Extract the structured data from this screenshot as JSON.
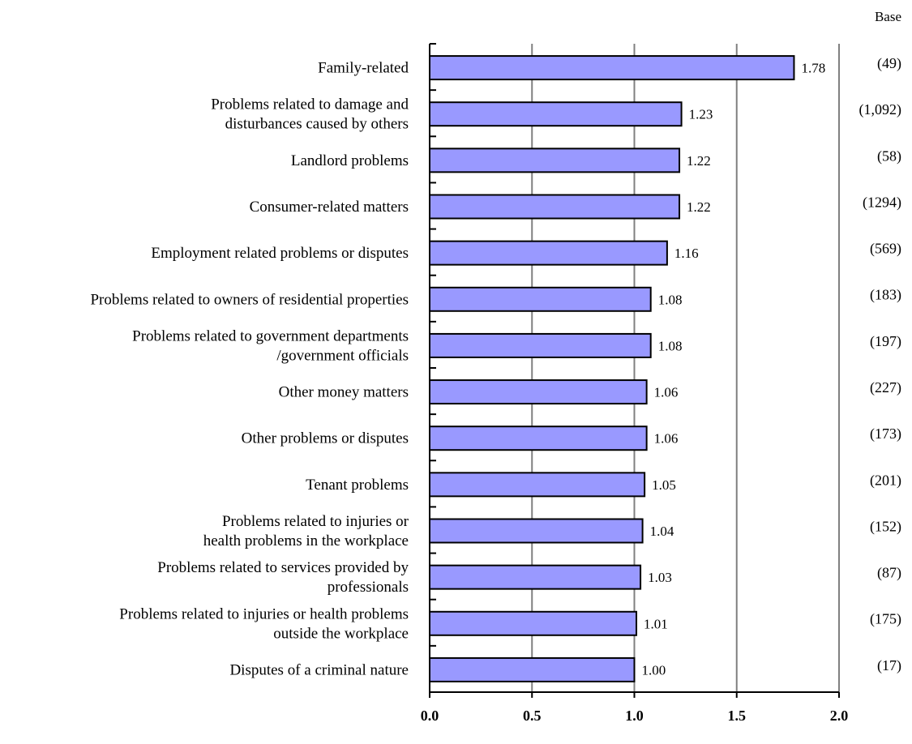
{
  "chart_data": {
    "type": "bar",
    "orientation": "horizontal",
    "base_title": "Base",
    "categories": [
      [
        "Family-related"
      ],
      [
        "Problems related to damage and",
        "disturbances caused by others"
      ],
      [
        "Landlord problems"
      ],
      [
        "Consumer-related matters"
      ],
      [
        "Employment related problems or disputes"
      ],
      [
        "Problems related to owners of residential properties"
      ],
      [
        "Problems related to government departments",
        "/government officials"
      ],
      [
        "Other money matters"
      ],
      [
        "Other problems or disputes"
      ],
      [
        "Tenant problems"
      ],
      [
        "Problems related to injuries or",
        "health problems in the workplace"
      ],
      [
        "Problems related to services provided by",
        "professionals"
      ],
      [
        "Problems related to injuries or health problems",
        "outside the workplace"
      ],
      [
        "Disputes of a criminal nature"
      ]
    ],
    "values": [
      1.78,
      1.23,
      1.22,
      1.22,
      1.16,
      1.08,
      1.08,
      1.06,
      1.06,
      1.05,
      1.04,
      1.03,
      1.01,
      1.0
    ],
    "value_labels": [
      "1.78",
      "1.23",
      "1.22",
      "1.22",
      "1.16",
      "1.08",
      "1.08",
      "1.06",
      "1.06",
      "1.05",
      "1.04",
      "1.03",
      "1.01",
      "1.00"
    ],
    "bases": [
      "(49)",
      "(1,092)",
      "(58)",
      "(1294)",
      "(569)",
      "(183)",
      "(197)",
      "(227)",
      "(173)",
      "(201)",
      "(152)",
      "(87)",
      "(175)",
      "(17)"
    ],
    "xlim": [
      0,
      2
    ],
    "xticks": [
      "0.0",
      "0.5",
      "1.0",
      "1.5",
      "2.0"
    ],
    "grid": true,
    "colors": {
      "bar": "#9999ff",
      "bar_stroke": "#000000",
      "grid": "#808080"
    }
  }
}
